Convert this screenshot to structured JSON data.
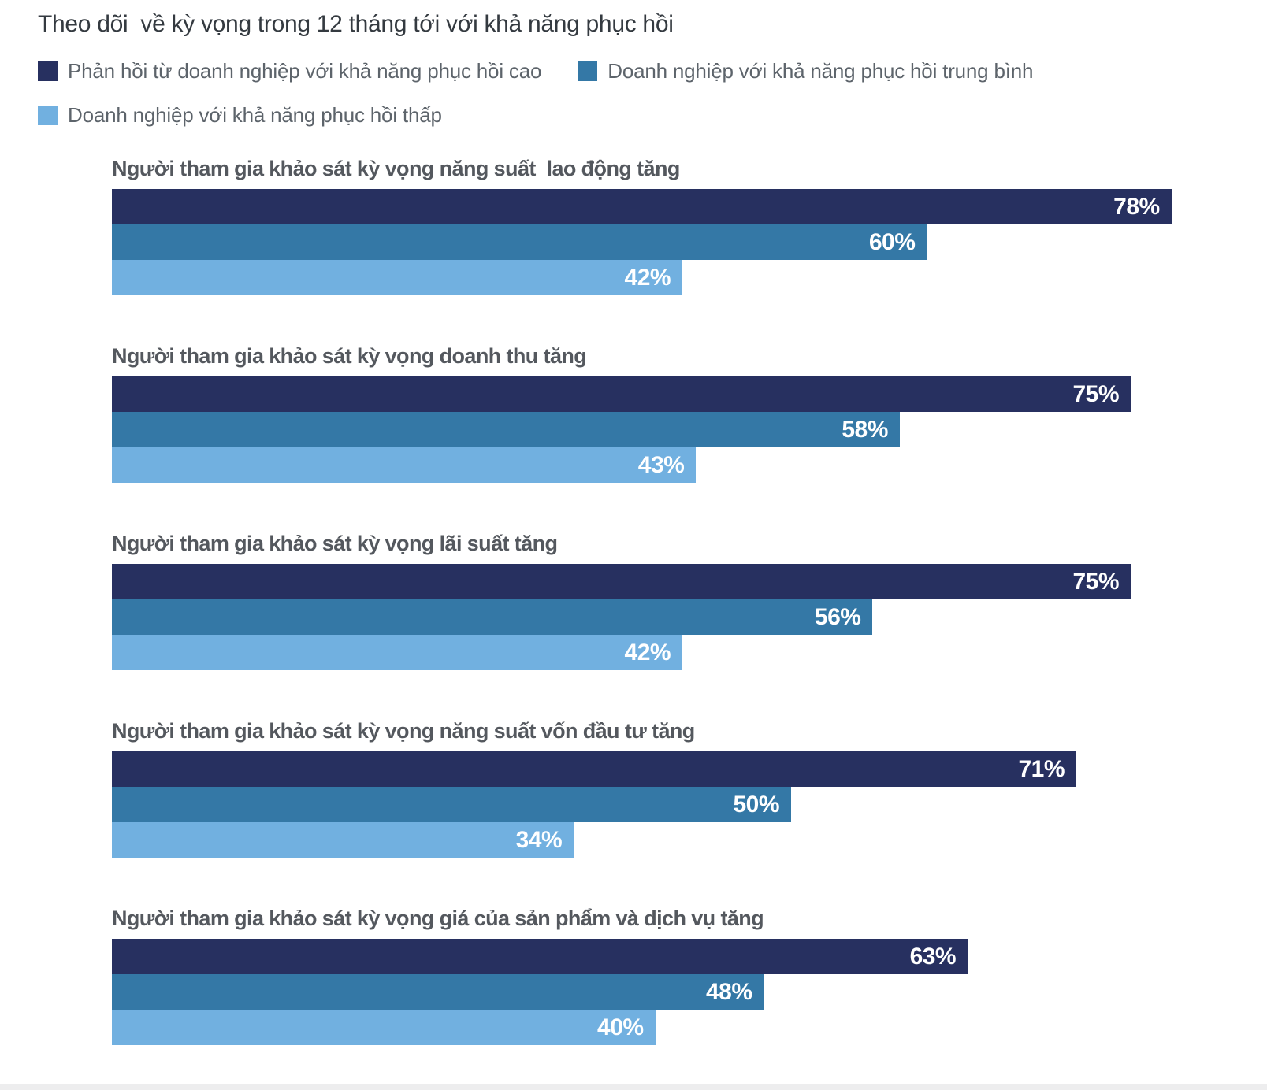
{
  "title": "Theo dõi  về kỳ vọng trong 12 tháng tới với khả năng phục hồi",
  "legend": {
    "items": [
      {
        "label": "Phản hồi từ doanh nghiệp với khả năng phục hồi cao",
        "color": "#273060"
      },
      {
        "label": "Doanh nghiệp với khả năng phục hồi trung bình",
        "color": "#3478a6"
      },
      {
        "label": "Doanh nghiệp với khả năng phục hồi thấp",
        "color": "#71b0e0"
      }
    ]
  },
  "chart_data": {
    "type": "bar",
    "orientation": "horizontal",
    "unit": "%",
    "title": "Theo dõi  về kỳ vọng trong 12 tháng tới với khả năng phục hồi",
    "categories": [
      "Người tham gia khảo sát kỳ vọng năng suất  lao động tăng",
      "Người tham gia khảo sát kỳ vọng doanh thu tăng",
      "Người tham gia khảo sát kỳ vọng lãi suất tăng",
      "Người tham gia khảo sát kỳ vọng năng suất vốn đầu tư tăng",
      "Người tham gia khảo sát kỳ vọng giá của sản phẩm và dịch vụ tăng"
    ],
    "series": [
      {
        "name": "Phản hồi từ doanh nghiệp với khả năng phục hồi cao",
        "color": "#273060",
        "values": [
          78,
          75,
          75,
          71,
          63
        ]
      },
      {
        "name": "Doanh nghiệp với khả năng phục hồi trung bình",
        "color": "#3478a6",
        "values": [
          60,
          58,
          56,
          50,
          48
        ]
      },
      {
        "name": "Doanh nghiệp với khả năng phục hồi thấp",
        "color": "#71b0e0",
        "values": [
          42,
          43,
          42,
          34,
          40
        ]
      }
    ],
    "xlim": [
      0,
      85
    ],
    "value_labels": "inside-end",
    "legend_position": "top",
    "grid": false
  }
}
